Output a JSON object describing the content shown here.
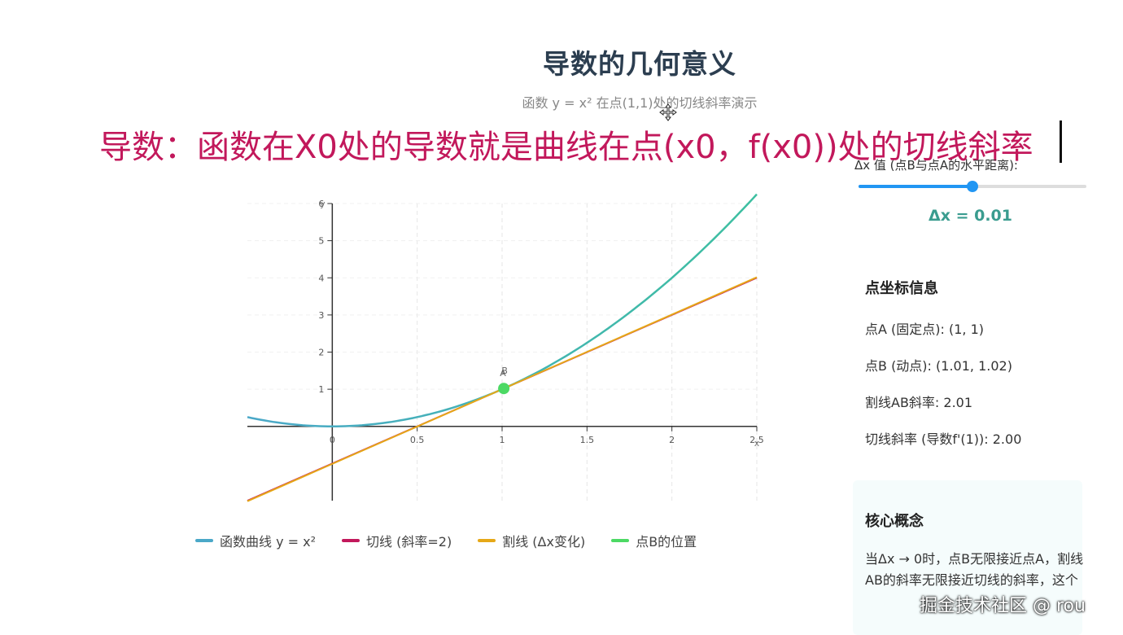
{
  "page": {
    "title": "导数的几何意义",
    "subtitle": "函数 y = x² 在点(1,1)处的切线斜率演示",
    "overlay_caption": "导数：函数在X0处的导数就是曲线在点(x0，f(x0))处的切线斜率"
  },
  "controls": {
    "dx_label": "Δx 值 (点B与点A的水平距离):",
    "dx_slider_fraction": 0.5,
    "dx_value_text": "Δx = 0.01"
  },
  "info": {
    "heading": "点坐标信息",
    "point_a": "点A (固定点): (1, 1)",
    "point_b": "点B (动点): (1.01, 1.02)",
    "secant_slope": "割线AB斜率: 2.01",
    "tangent_slope": "切线斜率 (导数f'(1)): 2.00"
  },
  "concept": {
    "heading": "核心概念",
    "text": "当Δx → 0时，点B无限接近点A，割线AB的斜率无限接近切线的斜率，这个"
  },
  "watermark": "掘金技术社区 @ rou",
  "colors": {
    "curve": "#4aa8c8",
    "curve_right": "#3dbfa0",
    "tangent": "#c2185b",
    "secant": "#e6a817",
    "point": "#4cd964",
    "accent": "#3a9c8f",
    "slider": "#2196f3"
  },
  "chart_data": {
    "type": "line",
    "xlim": [
      -0.5,
      2.5
    ],
    "ylim": [
      -2,
      6
    ],
    "x_ticks": [
      0,
      0.5,
      1,
      1.5,
      2,
      2.5
    ],
    "x_tick_labels": [
      "0",
      "0.5",
      "1",
      "1.5",
      "2",
      "2.5"
    ],
    "y_ticks": [
      1,
      2,
      3,
      4,
      5,
      6
    ],
    "y_tick_labels": [
      "1",
      "2",
      "3",
      "4",
      "5",
      "6"
    ],
    "xlabel": "x",
    "ylabel": "y",
    "grid": true,
    "legend_position": "bottom",
    "point_a": {
      "label": "A",
      "x": 1,
      "y": 1
    },
    "point_b": {
      "label": "B",
      "x": 1.01,
      "y": 1.02
    },
    "series": [
      {
        "name": "函数曲线 y = x²",
        "kind": "function",
        "expr": "x^2"
      },
      {
        "name": "切线 (斜率=2)",
        "kind": "line",
        "slope": 2,
        "intercept": -1
      },
      {
        "name": "割线 (Δx变化)",
        "kind": "line",
        "slope": 2.01,
        "intercept": -1.01
      },
      {
        "name": "点B的位置",
        "kind": "point"
      }
    ]
  }
}
